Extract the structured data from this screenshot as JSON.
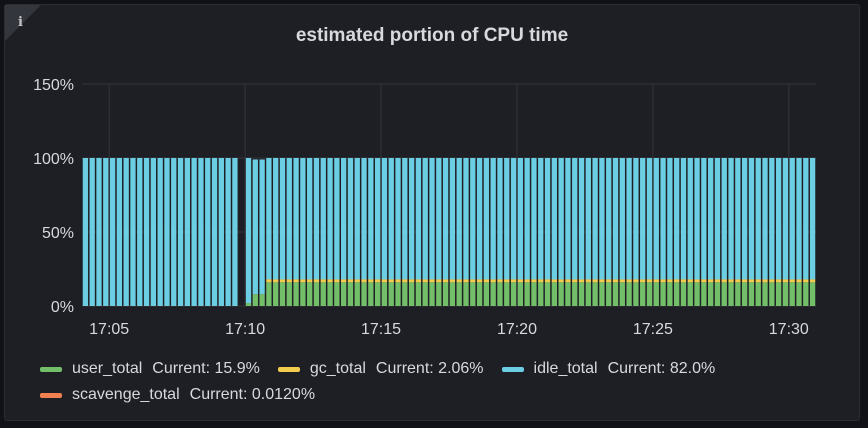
{
  "panel": {
    "title": "estimated portion of CPU time",
    "info_icon": "i"
  },
  "legend": [
    {
      "name": "user_total",
      "current_label": "Current: 15.9%",
      "color": "#73bf69"
    },
    {
      "name": "gc_total",
      "current_label": "Current: 2.06%",
      "color": "#f2cc4c"
    },
    {
      "name": "idle_total",
      "current_label": "Current: 82.0%",
      "color": "#6ccee3"
    },
    {
      "name": "scavenge_total",
      "current_label": "Current: 0.0120%",
      "color": "#f3804f"
    }
  ],
  "chart_data": {
    "type": "bar",
    "stacked": true,
    "title": "estimated portion of CPU time",
    "y_ticks": [
      "0%",
      "50%",
      "100%",
      "150%"
    ],
    "x_ticks": [
      "17:05",
      "17:10",
      "17:15",
      "17:20",
      "17:25",
      "17:30"
    ],
    "ylim": [
      0,
      150
    ],
    "y_unit": "%",
    "grid": true,
    "legend_position": "bottom",
    "x_start": "17:04:00",
    "x_end": "17:31:00",
    "bar_interval_seconds": 15,
    "gap": [
      "17:09:45",
      "17:10:00"
    ],
    "series": [
      {
        "name": "user_total",
        "color": "#73bf69",
        "segments": [
          {
            "from": "17:04:00",
            "to": "17:09:44",
            "value": 0
          },
          {
            "from": "17:10:00",
            "to": "17:10:15",
            "value": 2
          },
          {
            "from": "17:10:15",
            "to": "17:10:45",
            "value": 8
          },
          {
            "from": "17:10:45",
            "to": "17:31:00",
            "value": 16
          }
        ]
      },
      {
        "name": "gc_total",
        "color": "#f2cc4c",
        "segments": [
          {
            "from": "17:04:00",
            "to": "17:10:45",
            "value": 0
          },
          {
            "from": "17:10:45",
            "to": "17:31:00",
            "value": 2
          }
        ]
      },
      {
        "name": "scavenge_total",
        "color": "#f3804f",
        "segments": [
          {
            "from": "17:04:00",
            "to": "17:31:00",
            "value": 0.01
          }
        ]
      },
      {
        "name": "idle_total",
        "color": "#6ccee3",
        "segments": [
          {
            "from": "17:04:00",
            "to": "17:09:44",
            "value": 100
          },
          {
            "from": "17:10:00",
            "to": "17:10:15",
            "value": 98
          },
          {
            "from": "17:10:15",
            "to": "17:10:45",
            "value": 91
          },
          {
            "from": "17:10:45",
            "to": "17:31:00",
            "value": 82
          }
        ]
      }
    ]
  }
}
